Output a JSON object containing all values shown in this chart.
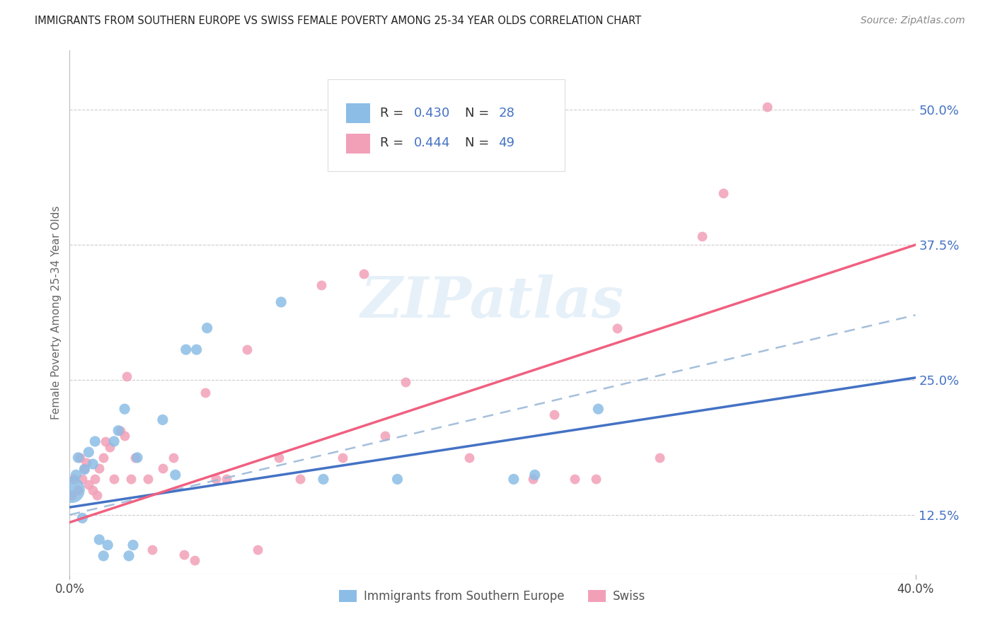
{
  "title": "IMMIGRANTS FROM SOUTHERN EUROPE VS SWISS FEMALE POVERTY AMONG 25-34 YEAR OLDS CORRELATION CHART",
  "source": "Source: ZipAtlas.com",
  "ylabel": "Female Poverty Among 25-34 Year Olds",
  "xlim": [
    0.0,
    0.4
  ],
  "ylim": [
    0.07,
    0.555
  ],
  "yticks_right": [
    0.125,
    0.25,
    0.375,
    0.5
  ],
  "ytick_labels_right": [
    "12.5%",
    "25.0%",
    "37.5%",
    "50.0%"
  ],
  "color_blue": "#8BBDE6",
  "color_pink": "#F2A0B8",
  "color_blue_text": "#4472C4",
  "line_blue": "#4472C4",
  "line_pink": "#F06080",
  "line_dashed_color": "#9BB8D8",
  "watermark": "ZIPatlas",
  "blue_line_y0": 0.132,
  "blue_line_y1": 0.252,
  "pink_line_y0": 0.118,
  "pink_line_y1": 0.375,
  "dash_line_y0": 0.125,
  "dash_line_y1": 0.31,
  "blue_x": [
    0.001,
    0.003,
    0.004,
    0.006,
    0.007,
    0.009,
    0.011,
    0.012,
    0.014,
    0.016,
    0.018,
    0.021,
    0.023,
    0.026,
    0.028,
    0.03,
    0.032,
    0.044,
    0.05,
    0.055,
    0.06,
    0.065,
    0.1,
    0.12,
    0.155,
    0.21,
    0.22,
    0.25
  ],
  "blue_y": [
    0.148,
    0.162,
    0.178,
    0.122,
    0.167,
    0.183,
    0.172,
    0.193,
    0.102,
    0.087,
    0.097,
    0.193,
    0.203,
    0.223,
    0.087,
    0.097,
    0.178,
    0.213,
    0.162,
    0.278,
    0.278,
    0.298,
    0.322,
    0.158,
    0.158,
    0.158,
    0.162,
    0.223
  ],
  "blue_sizes": [
    700,
    120,
    120,
    120,
    120,
    120,
    120,
    120,
    120,
    120,
    120,
    120,
    120,
    120,
    120,
    120,
    120,
    120,
    120,
    120,
    120,
    120,
    120,
    120,
    120,
    120,
    120,
    120
  ],
  "pink_x": [
    0.001,
    0.002,
    0.004,
    0.005,
    0.006,
    0.007,
    0.008,
    0.009,
    0.011,
    0.012,
    0.013,
    0.014,
    0.016,
    0.017,
    0.019,
    0.021,
    0.024,
    0.026,
    0.027,
    0.029,
    0.031,
    0.037,
    0.039,
    0.044,
    0.049,
    0.054,
    0.059,
    0.064,
    0.069,
    0.074,
    0.084,
    0.089,
    0.099,
    0.109,
    0.119,
    0.129,
    0.139,
    0.149,
    0.159,
    0.189,
    0.219,
    0.229,
    0.239,
    0.249,
    0.259,
    0.279,
    0.299,
    0.309,
    0.33
  ],
  "pink_y": [
    0.143,
    0.158,
    0.148,
    0.178,
    0.158,
    0.168,
    0.173,
    0.153,
    0.148,
    0.158,
    0.143,
    0.168,
    0.178,
    0.193,
    0.188,
    0.158,
    0.203,
    0.198,
    0.253,
    0.158,
    0.178,
    0.158,
    0.093,
    0.168,
    0.178,
    0.088,
    0.083,
    0.238,
    0.158,
    0.158,
    0.278,
    0.093,
    0.178,
    0.158,
    0.338,
    0.178,
    0.348,
    0.198,
    0.248,
    0.178,
    0.158,
    0.218,
    0.158,
    0.158,
    0.298,
    0.178,
    0.383,
    0.423,
    0.503
  ],
  "grid_color": "#CCCCCC",
  "background_color": "#FFFFFF"
}
